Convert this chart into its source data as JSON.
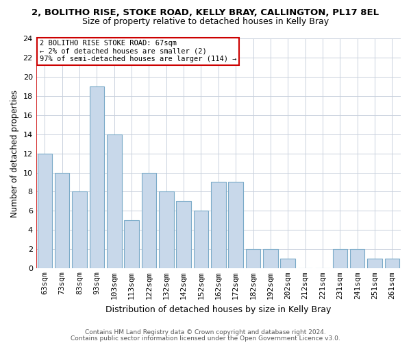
{
  "title_main": "2, BOLITHO RISE, STOKE ROAD, KELLY BRAY, CALLINGTON, PL17 8EL",
  "title_sub": "Size of property relative to detached houses in Kelly Bray",
  "xlabel": "Distribution of detached houses by size in Kelly Bray",
  "ylabel": "Number of detached properties",
  "categories": [
    "63sqm",
    "73sqm",
    "83sqm",
    "93sqm",
    "103sqm",
    "113sqm",
    "122sqm",
    "132sqm",
    "142sqm",
    "152sqm",
    "162sqm",
    "172sqm",
    "182sqm",
    "192sqm",
    "202sqm",
    "212sqm",
    "221sqm",
    "231sqm",
    "241sqm",
    "251sqm",
    "261sqm"
  ],
  "values": [
    12,
    10,
    8,
    19,
    14,
    5,
    10,
    8,
    7,
    6,
    9,
    9,
    2,
    2,
    1,
    0,
    0,
    2,
    2,
    1,
    1
  ],
  "bar_color": "#c8d8ea",
  "bar_edge_color": "#7aaac8",
  "annotation_line1": "2 BOLITHO RISE STOKE ROAD: 67sqm",
  "annotation_line2": "← 2% of detached houses are smaller (2)",
  "annotation_line3": "97% of semi-detached houses are larger (114) →",
  "annotation_box_facecolor": "#ffffff",
  "annotation_box_edgecolor": "#cc0000",
  "vline_color": "#cc0000",
  "grid_color": "#c8d0dc",
  "background_color": "#ffffff",
  "plot_bg_color": "#ffffff",
  "ylim": [
    0,
    24
  ],
  "yticks": [
    0,
    2,
    4,
    6,
    8,
    10,
    12,
    14,
    16,
    18,
    20,
    22,
    24
  ],
  "footer1": "Contains HM Land Registry data © Crown copyright and database right 2024.",
  "footer2": "Contains public sector information licensed under the Open Government Licence v3.0.",
  "title_fontsize": 9.5,
  "subtitle_fontsize": 9,
  "ylabel_fontsize": 8.5,
  "xlabel_fontsize": 9,
  "tick_fontsize": 8,
  "annotation_fontsize": 7.5,
  "footer_fontsize": 6.5
}
